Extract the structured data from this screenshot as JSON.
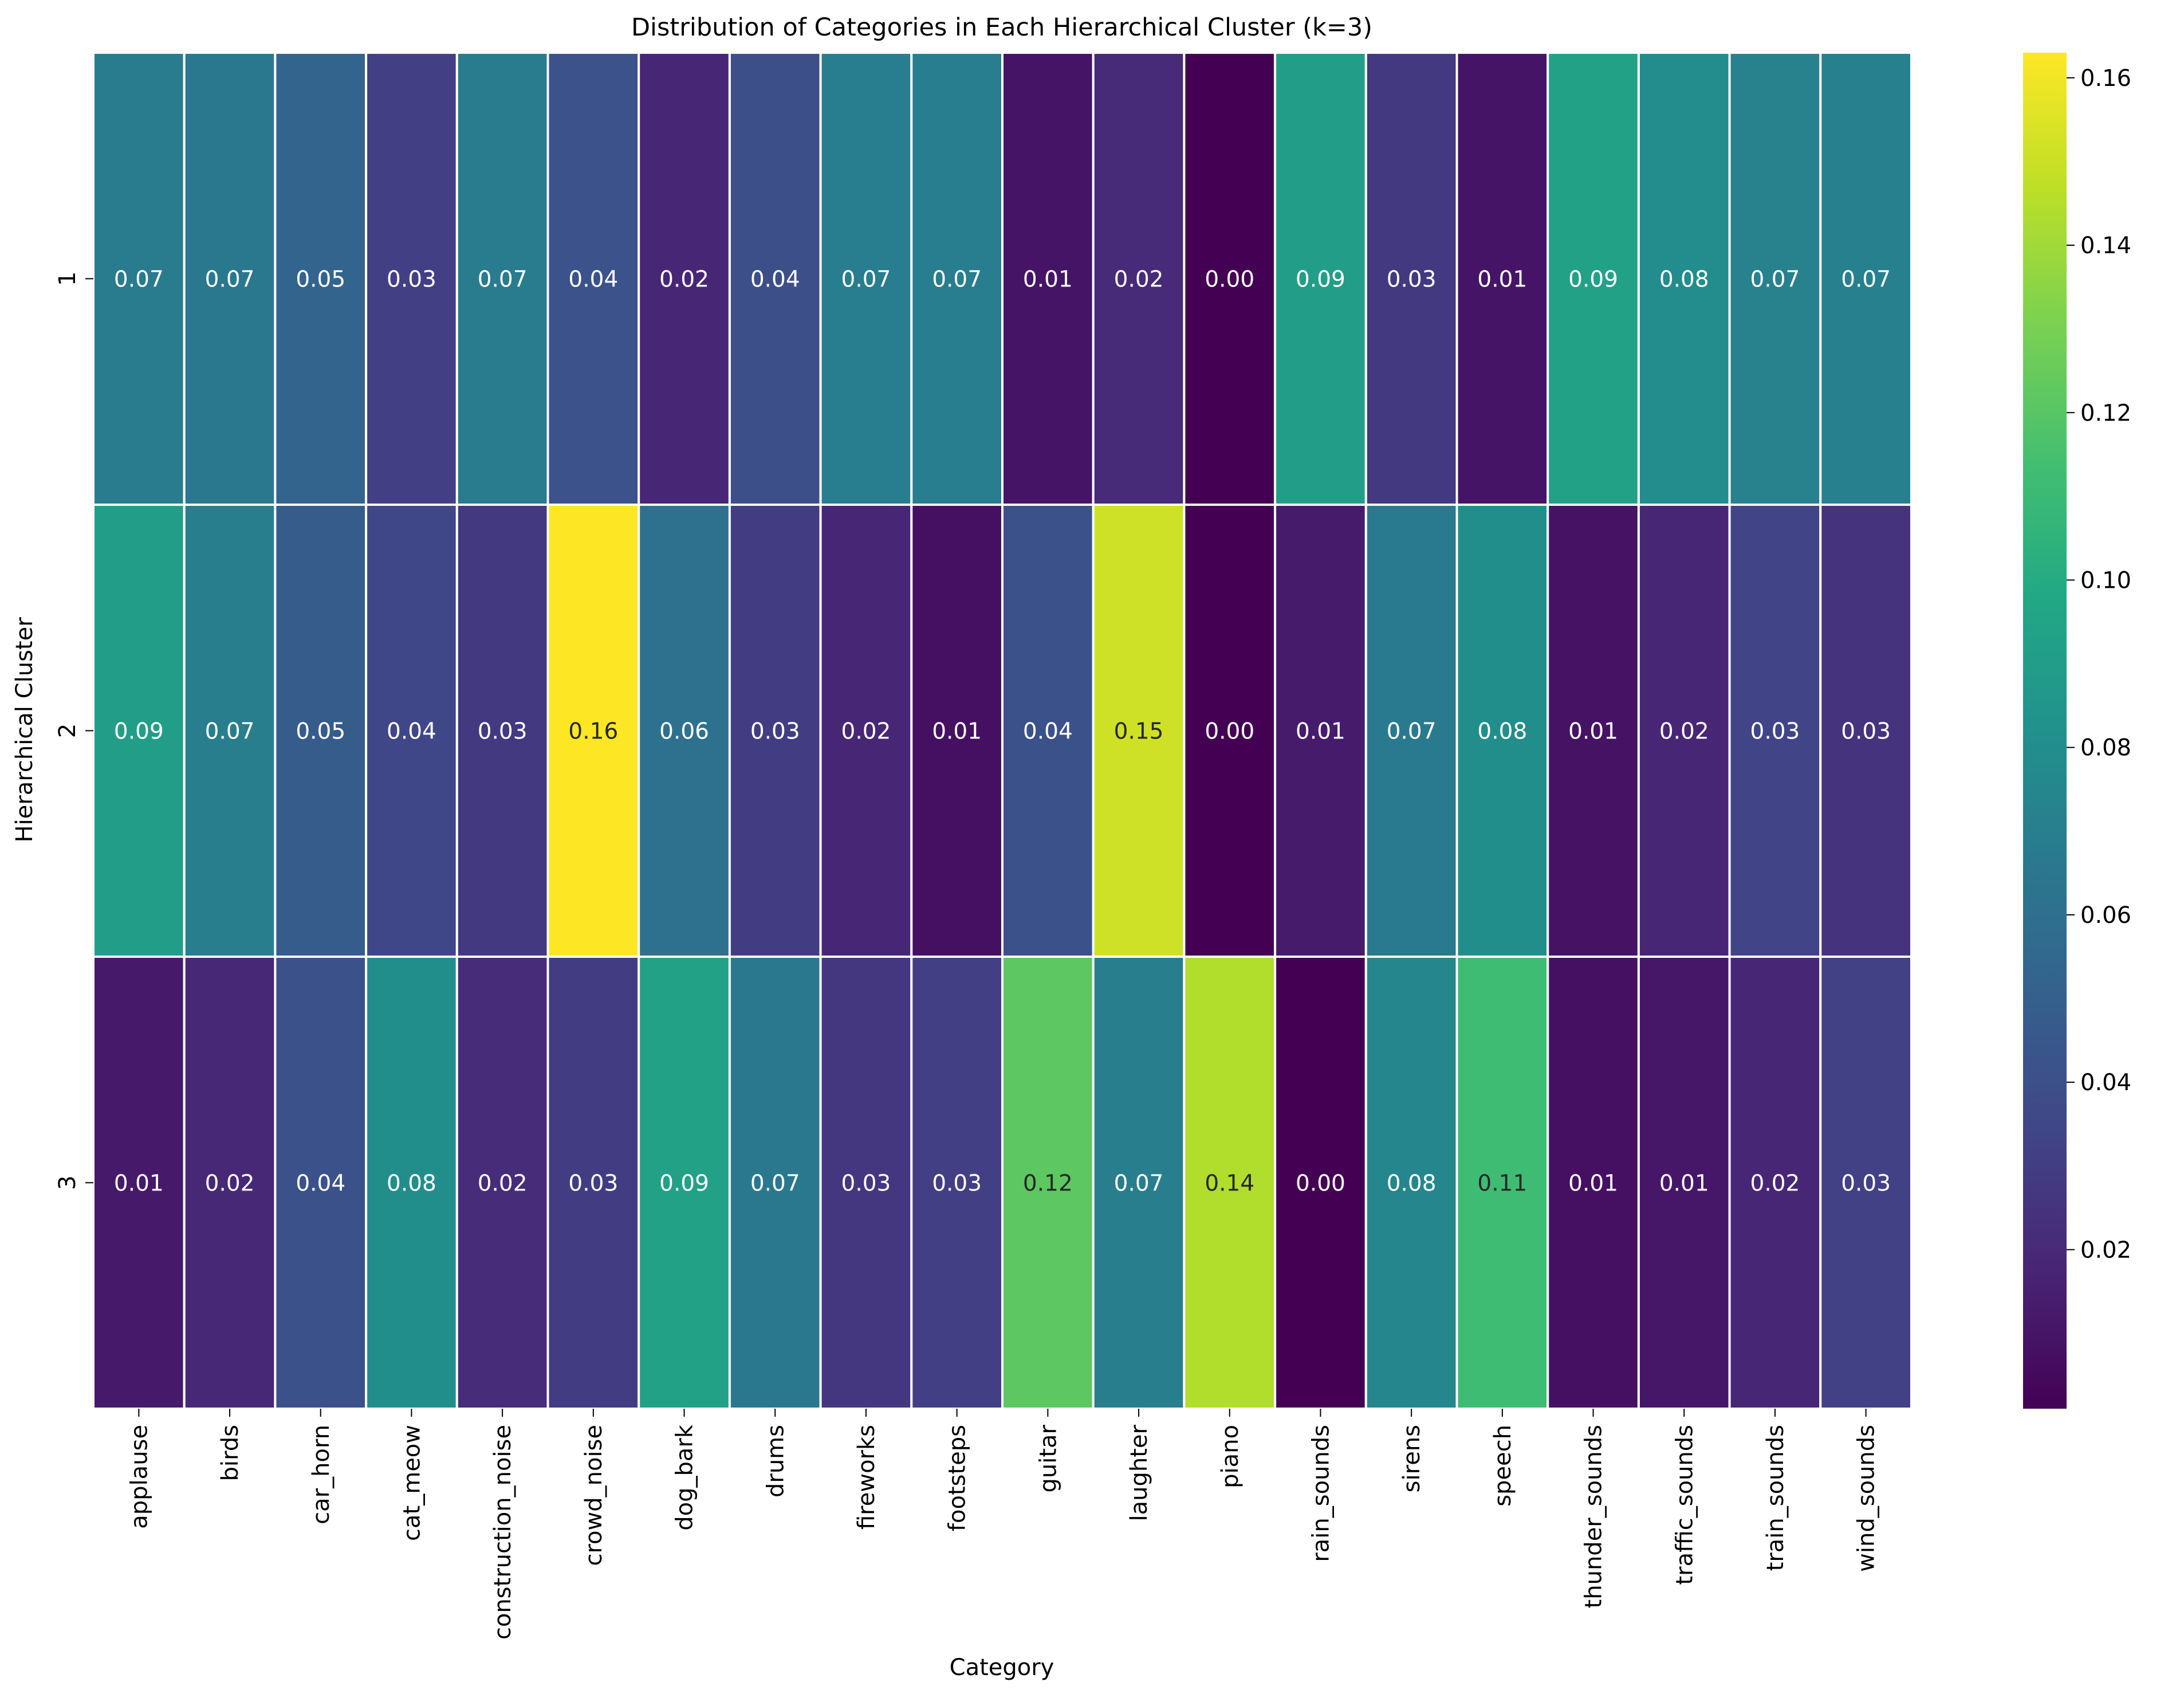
{
  "chart_data": {
    "type": "heatmap",
    "title": "Distribution of Categories in Each Hierarchical Cluster (k=3)",
    "xlabel": "Category",
    "ylabel": "Hierarchical Cluster",
    "colormap": "viridis",
    "x_categories": [
      "applause",
      "birds",
      "car_horn",
      "cat_meow",
      "construction_noise",
      "crowd_noise",
      "dog_bark",
      "drums",
      "fireworks",
      "footsteps",
      "guitar",
      "laughter",
      "piano",
      "rain_sounds",
      "sirens",
      "speech",
      "thunder_sounds",
      "traffic_sounds",
      "train_sounds",
      "wind_sounds"
    ],
    "y_categories": [
      "1",
      "2",
      "3"
    ],
    "values": [
      [
        0.07,
        0.07,
        0.05,
        0.03,
        0.07,
        0.04,
        0.02,
        0.04,
        0.07,
        0.07,
        0.01,
        0.02,
        0.0,
        0.09,
        0.03,
        0.01,
        0.09,
        0.08,
        0.07,
        0.07
      ],
      [
        0.09,
        0.07,
        0.05,
        0.04,
        0.03,
        0.16,
        0.06,
        0.03,
        0.02,
        0.01,
        0.04,
        0.15,
        0.0,
        0.01,
        0.07,
        0.08,
        0.01,
        0.02,
        0.03,
        0.03
      ],
      [
        0.01,
        0.02,
        0.04,
        0.08,
        0.02,
        0.03,
        0.09,
        0.07,
        0.03,
        0.03,
        0.12,
        0.07,
        0.14,
        0.0,
        0.08,
        0.11,
        0.01,
        0.01,
        0.02,
        0.03
      ]
    ],
    "cell_values_for_color": [
      [
        0.068,
        0.066,
        0.053,
        0.031,
        0.068,
        0.042,
        0.018,
        0.04,
        0.069,
        0.069,
        0.01,
        0.02,
        0.001,
        0.091,
        0.028,
        0.01,
        0.093,
        0.079,
        0.072,
        0.071
      ],
      [
        0.091,
        0.07,
        0.048,
        0.035,
        0.028,
        0.163,
        0.061,
        0.03,
        0.018,
        0.008,
        0.041,
        0.151,
        0.001,
        0.013,
        0.067,
        0.08,
        0.009,
        0.018,
        0.034,
        0.025
      ],
      [
        0.012,
        0.019,
        0.041,
        0.08,
        0.021,
        0.03,
        0.093,
        0.066,
        0.027,
        0.031,
        0.122,
        0.07,
        0.144,
        0.001,
        0.075,
        0.112,
        0.008,
        0.011,
        0.018,
        0.032
      ]
    ],
    "vmin": 0.001,
    "vmax": 0.163,
    "colorbar_ticks": [
      "0.02",
      "0.04",
      "0.06",
      "0.08",
      "0.10",
      "0.12",
      "0.14",
      "0.16"
    ],
    "colorbar_tick_values": [
      0.02,
      0.04,
      0.06,
      0.08,
      0.1,
      0.12,
      0.14,
      0.16
    ]
  }
}
